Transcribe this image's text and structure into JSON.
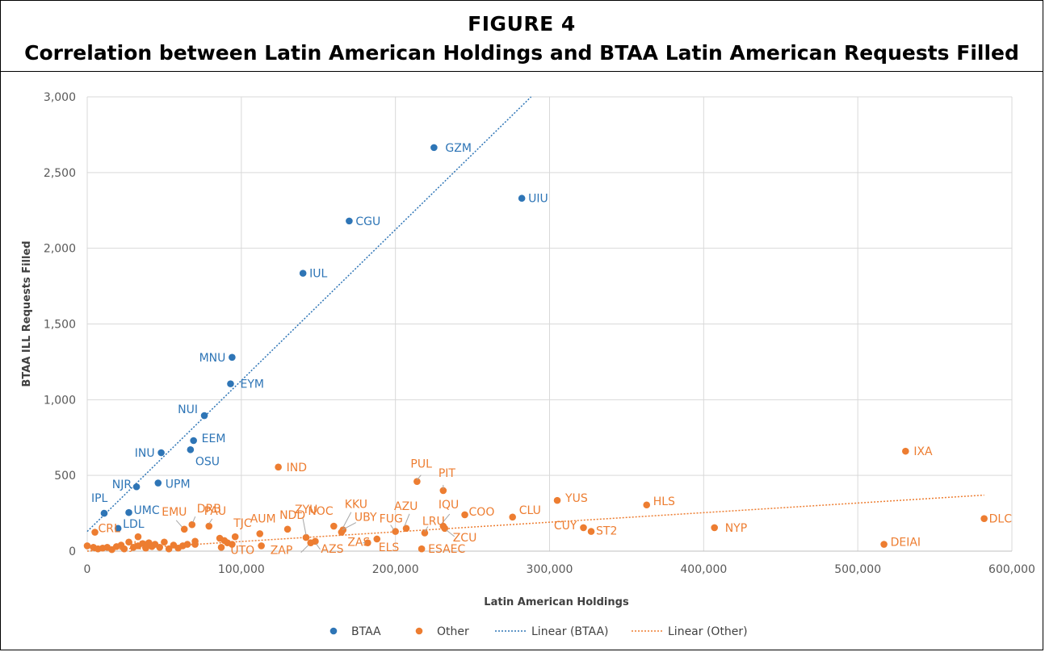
{
  "figure": {
    "label": "FIGURE 4",
    "title": "Correlation between Latin American Holdings and BTAA Latin American Requests Filled"
  },
  "colors": {
    "btaa": "#2E75B6",
    "other": "#ED7D31",
    "grid": "#D9D9D9"
  },
  "chart_data": {
    "type": "scatter",
    "xlabel": "Latin American Holdings",
    "ylabel": "BTAA ILL Requests Filled",
    "xlim": [
      0,
      600000
    ],
    "ylim": [
      0,
      3000
    ],
    "x_ticks": [
      "0",
      "100,000",
      "200,000",
      "300,000",
      "400,000",
      "500,000",
      "600,000"
    ],
    "y_ticks": [
      "0",
      "500",
      "1,000",
      "1,500",
      "2,000",
      "2,500",
      "3,000"
    ],
    "grid": true,
    "legend_position": "bottom",
    "legend": [
      "BTAA",
      "Other",
      "Linear (BTAA)",
      "Linear (Other)"
    ],
    "series": [
      {
        "name": "BTAA",
        "points": [
          {
            "label": "GZM",
            "x": 225000,
            "y": 2665
          },
          {
            "label": "UIU",
            "x": 282000,
            "y": 2330
          },
          {
            "label": "CGU",
            "x": 170000,
            "y": 2180
          },
          {
            "label": "IUL",
            "x": 140000,
            "y": 1835
          },
          {
            "label": "MNU",
            "x": 94000,
            "y": 1280
          },
          {
            "label": "EYM",
            "x": 93000,
            "y": 1105
          },
          {
            "label": "NUI",
            "x": 76000,
            "y": 895
          },
          {
            "label": "EEM",
            "x": 69000,
            "y": 730
          },
          {
            "label": "OSU",
            "x": 67000,
            "y": 670
          },
          {
            "label": "INU",
            "x": 48000,
            "y": 650
          },
          {
            "label": "UPM",
            "x": 46000,
            "y": 450
          },
          {
            "label": "NJR",
            "x": 32000,
            "y": 425
          },
          {
            "label": "UMC",
            "x": 27000,
            "y": 255
          },
          {
            "label": "IPL",
            "x": 11000,
            "y": 250
          },
          {
            "label": "LDL",
            "x": 20000,
            "y": 150
          }
        ]
      },
      {
        "name": "Other",
        "points": [
          {
            "label": "IXA",
            "x": 531000,
            "y": 660
          },
          {
            "label": "DLC",
            "x": 582000,
            "y": 215
          },
          {
            "label": "DEIAI",
            "x": 517000,
            "y": 45
          },
          {
            "label": "NYP",
            "x": 407000,
            "y": 155
          },
          {
            "label": "HLS",
            "x": 363000,
            "y": 305
          },
          {
            "label": "YUS",
            "x": 305000,
            "y": 335
          },
          {
            "label": "CUY",
            "x": 322000,
            "y": 155
          },
          {
            "label": "ST2",
            "x": 327000,
            "y": 130
          },
          {
            "label": "CLU",
            "x": 276000,
            "y": 225
          },
          {
            "label": "COO",
            "x": 245000,
            "y": 240
          },
          {
            "label": "IQU",
            "x": 231000,
            "y": 165
          },
          {
            "label": "ZCU",
            "x": 232000,
            "y": 150
          },
          {
            "label": "LRU",
            "x": 219000,
            "y": 120
          },
          {
            "label": "ESAEC",
            "x": 217000,
            "y": 15
          },
          {
            "label": "PUL",
            "x": 214000,
            "y": 460
          },
          {
            "label": "PIT",
            "x": 231000,
            "y": 400
          },
          {
            "label": "AZU",
            "x": 207000,
            "y": 150
          },
          {
            "label": "FUG",
            "x": 200000,
            "y": 130
          },
          {
            "label": "IND",
            "x": 124000,
            "y": 555
          },
          {
            "label": "KKU",
            "x": 166000,
            "y": 140
          },
          {
            "label": "UBY",
            "x": 165000,
            "y": 125
          },
          {
            "label": "NOC",
            "x": 160000,
            "y": 165
          },
          {
            "label": "ZYU",
            "x": 142000,
            "y": 90
          },
          {
            "label": "NDD",
            "x": 130000,
            "y": 145
          },
          {
            "label": "AUM",
            "x": 112000,
            "y": 115
          },
          {
            "label": "ZAP",
            "x": 145000,
            "y": 55
          },
          {
            "label": "AZS",
            "x": 148000,
            "y": 65
          },
          {
            "label": "ZAS",
            "x": 182000,
            "y": 55
          },
          {
            "label": "ELS",
            "x": 188000,
            "y": 80
          },
          {
            "label": "TJC",
            "x": 96000,
            "y": 95
          },
          {
            "label": "UTO",
            "x": 94000,
            "y": 45
          },
          {
            "label": "PAU",
            "x": 79000,
            "y": 165
          },
          {
            "label": "DRB",
            "x": 68000,
            "y": 175
          },
          {
            "label": "EMU",
            "x": 63000,
            "y": 145
          },
          {
            "label": "JHE",
            "x": 33000,
            "y": 95
          },
          {
            "label": "CRL",
            "x": 5000,
            "y": 125
          },
          {
            "label": "",
            "x": 0,
            "y": 35
          },
          {
            "label": "",
            "x": 4000,
            "y": 25
          },
          {
            "label": "",
            "x": 7000,
            "y": 15
          },
          {
            "label": "",
            "x": 10000,
            "y": 20
          },
          {
            "label": "",
            "x": 13000,
            "y": 25
          },
          {
            "label": "",
            "x": 16000,
            "y": 10
          },
          {
            "label": "",
            "x": 19000,
            "y": 30
          },
          {
            "label": "",
            "x": 22000,
            "y": 40
          },
          {
            "label": "",
            "x": 24000,
            "y": 15
          },
          {
            "label": "",
            "x": 27000,
            "y": 60
          },
          {
            "label": "",
            "x": 30000,
            "y": 25
          },
          {
            "label": "",
            "x": 33000,
            "y": 35
          },
          {
            "label": "",
            "x": 36000,
            "y": 50
          },
          {
            "label": "",
            "x": 38000,
            "y": 20
          },
          {
            "label": "",
            "x": 40000,
            "y": 55
          },
          {
            "label": "",
            "x": 42000,
            "y": 30
          },
          {
            "label": "",
            "x": 44000,
            "y": 45
          },
          {
            "label": "",
            "x": 47000,
            "y": 25
          },
          {
            "label": "",
            "x": 50000,
            "y": 60
          },
          {
            "label": "",
            "x": 53000,
            "y": 15
          },
          {
            "label": "",
            "x": 56000,
            "y": 40
          },
          {
            "label": "",
            "x": 59000,
            "y": 20
          },
          {
            "label": "",
            "x": 62000,
            "y": 35
          },
          {
            "label": "",
            "x": 65000,
            "y": 45
          },
          {
            "label": "",
            "x": 70000,
            "y": 65
          },
          {
            "label": "",
            "x": 70000,
            "y": 45
          },
          {
            "label": "",
            "x": 86000,
            "y": 85
          },
          {
            "label": "",
            "x": 87000,
            "y": 25
          },
          {
            "label": "",
            "x": 89000,
            "y": 70
          },
          {
            "label": "",
            "x": 91000,
            "y": 55
          },
          {
            "label": "",
            "x": 113000,
            "y": 35
          }
        ]
      }
    ],
    "trendlines": [
      {
        "name": "Linear (BTAA)",
        "x": [
          0,
          288000
        ],
        "y": [
          130,
          3000
        ]
      },
      {
        "name": "Linear (Other)",
        "x": [
          0,
          582000
        ],
        "y": [
          0,
          370
        ]
      }
    ]
  }
}
